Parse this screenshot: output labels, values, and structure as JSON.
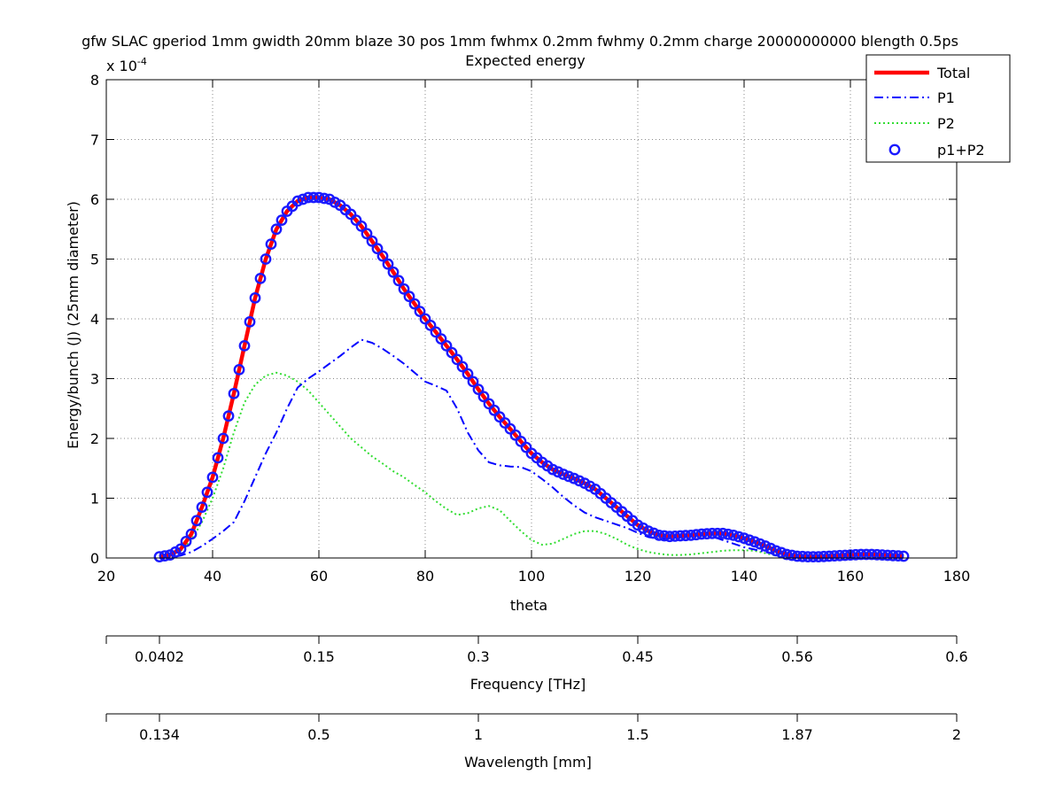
{
  "chart_data": {
    "type": "line",
    "title": "gfw SLAC gperiod 1mm gwidth 20mm blaze 30 pos 1mm fwhmx 0.2mm fwhmy 0.2mm charge 20000000000 blength 0.5ps",
    "subtitle": "Expected energy",
    "xlabel": "theta",
    "ylabel": "Energy/bunch (J) (25mm diameter)",
    "y_exponent_label": "x 10",
    "y_exponent_power": "-4",
    "xlim": [
      20,
      180
    ],
    "ylim": [
      0,
      8
    ],
    "xticks": [
      "20",
      "40",
      "60",
      "80",
      "100",
      "120",
      "140",
      "160",
      "180"
    ],
    "yticks": [
      "0",
      "1",
      "2",
      "3",
      "4",
      "5",
      "6",
      "7",
      "8"
    ],
    "grid": true,
    "legend_position": "top-right",
    "series": [
      {
        "name": "Total",
        "color": "#ff0000",
        "style": "solid",
        "x": [
          30,
          32,
          34,
          36,
          38,
          40,
          42,
          44,
          46,
          48,
          50,
          52,
          54,
          56,
          58,
          60,
          62,
          64,
          66,
          68,
          70,
          72,
          74,
          76,
          78,
          80,
          82,
          84,
          86,
          88,
          90,
          92,
          94,
          96,
          98,
          100,
          102,
          104,
          106,
          108,
          110,
          112,
          114,
          116,
          118,
          120,
          122,
          124,
          126,
          128,
          130,
          132,
          134,
          136,
          138,
          140,
          142,
          144,
          146,
          148,
          150,
          152,
          154,
          156,
          158,
          160,
          162,
          164,
          166,
          168,
          170
        ],
        "y": [
          0.02,
          0.05,
          0.15,
          0.4,
          0.85,
          1.35,
          2.0,
          2.75,
          3.55,
          4.35,
          5.0,
          5.5,
          5.8,
          5.97,
          6.03,
          6.03,
          6.0,
          5.9,
          5.75,
          5.55,
          5.3,
          5.05,
          4.78,
          4.5,
          4.25,
          4.0,
          3.78,
          3.55,
          3.32,
          3.08,
          2.82,
          2.58,
          2.36,
          2.16,
          1.95,
          1.75,
          1.6,
          1.48,
          1.4,
          1.33,
          1.25,
          1.15,
          1.0,
          0.85,
          0.7,
          0.55,
          0.45,
          0.38,
          0.36,
          0.37,
          0.38,
          0.4,
          0.41,
          0.41,
          0.38,
          0.33,
          0.27,
          0.2,
          0.12,
          0.06,
          0.03,
          0.02,
          0.02,
          0.03,
          0.04,
          0.05,
          0.06,
          0.06,
          0.05,
          0.04,
          0.03
        ]
      },
      {
        "name": "P1",
        "color": "#0000ff",
        "style": "dashdot",
        "x": [
          30,
          32,
          34,
          36,
          38,
          40,
          42,
          44,
          46,
          48,
          50,
          52,
          54,
          56,
          58,
          60,
          62,
          64,
          66,
          68,
          70,
          72,
          74,
          76,
          78,
          80,
          82,
          84,
          86,
          88,
          90,
          92,
          94,
          96,
          98,
          100,
          102,
          104,
          106,
          108,
          110,
          112,
          114,
          116,
          118,
          120,
          122,
          124,
          126,
          128,
          130,
          132,
          134,
          136,
          138,
          140,
          142,
          144,
          146,
          148,
          150,
          152,
          154,
          156,
          158,
          160,
          162,
          164,
          166,
          168,
          170
        ],
        "y": [
          0.0,
          0.01,
          0.04,
          0.1,
          0.2,
          0.32,
          0.45,
          0.6,
          0.95,
          1.35,
          1.75,
          2.1,
          2.5,
          2.85,
          3.0,
          3.12,
          3.25,
          3.38,
          3.52,
          3.65,
          3.6,
          3.5,
          3.38,
          3.25,
          3.1,
          2.95,
          2.88,
          2.8,
          2.5,
          2.1,
          1.8,
          1.6,
          1.55,
          1.53,
          1.52,
          1.45,
          1.32,
          1.18,
          1.02,
          0.88,
          0.76,
          0.68,
          0.62,
          0.56,
          0.5,
          0.42,
          0.35,
          0.32,
          0.33,
          0.35,
          0.37,
          0.38,
          0.36,
          0.3,
          0.24,
          0.18,
          0.14,
          0.1,
          0.06,
          0.03,
          0.02,
          0.02,
          0.03,
          0.03,
          0.04,
          0.04,
          0.04,
          0.04,
          0.03,
          0.02,
          0.01
        ]
      },
      {
        "name": "P2",
        "color": "#33dd33",
        "style": "dotted",
        "x": [
          30,
          32,
          34,
          36,
          38,
          40,
          42,
          44,
          46,
          48,
          50,
          52,
          54,
          56,
          58,
          60,
          62,
          64,
          66,
          68,
          70,
          72,
          74,
          76,
          78,
          80,
          82,
          84,
          86,
          88,
          90,
          92,
          94,
          96,
          98,
          100,
          102,
          104,
          106,
          108,
          110,
          112,
          114,
          116,
          118,
          120,
          122,
          124,
          126,
          128,
          130,
          132,
          134,
          136,
          138,
          140,
          142,
          144,
          146,
          148,
          150
        ],
        "y": [
          0.02,
          0.05,
          0.12,
          0.3,
          0.6,
          1.0,
          1.5,
          2.1,
          2.6,
          2.9,
          3.05,
          3.1,
          3.05,
          2.95,
          2.8,
          2.6,
          2.4,
          2.2,
          2.0,
          1.85,
          1.7,
          1.58,
          1.45,
          1.35,
          1.22,
          1.1,
          0.95,
          0.82,
          0.72,
          0.75,
          0.83,
          0.87,
          0.8,
          0.62,
          0.45,
          0.3,
          0.22,
          0.24,
          0.32,
          0.4,
          0.45,
          0.45,
          0.4,
          0.32,
          0.22,
          0.15,
          0.1,
          0.07,
          0.05,
          0.05,
          0.06,
          0.08,
          0.1,
          0.12,
          0.13,
          0.13,
          0.12,
          0.08,
          0.04,
          0.02,
          0.0
        ]
      },
      {
        "name": "p1+P2",
        "color": "#1a1aff",
        "style": "markers"
      }
    ],
    "secondary_axes": [
      {
        "label": "Frequency [THz]",
        "ticks": [
          {
            "theta": 30,
            "label": "0.0402"
          },
          {
            "theta": 60,
            "label": "0.15"
          },
          {
            "theta": 90,
            "label": "0.3"
          },
          {
            "theta": 120,
            "label": "0.45"
          },
          {
            "theta": 150,
            "label": "0.56"
          },
          {
            "theta": 180,
            "label": "0.6"
          }
        ]
      },
      {
        "label": "Wavelength [mm]",
        "ticks": [
          {
            "theta": 30,
            "label": "0.134"
          },
          {
            "theta": 60,
            "label": "0.5"
          },
          {
            "theta": 90,
            "label": "1"
          },
          {
            "theta": 120,
            "label": "1.5"
          },
          {
            "theta": 150,
            "label": "1.87"
          },
          {
            "theta": 180,
            "label": "2"
          }
        ]
      }
    ]
  }
}
